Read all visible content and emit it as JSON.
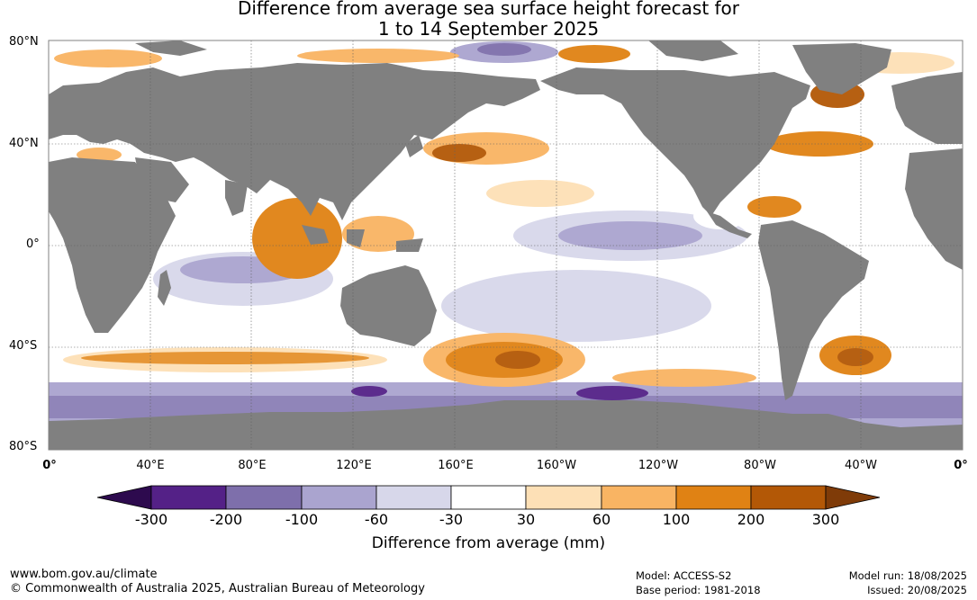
{
  "title": {
    "line1": "Difference from average sea surface height forecast for",
    "line2": "1 to 14 September 2025"
  },
  "map": {
    "lat_labels": [
      "80°N",
      "40°N",
      "0°",
      "40°S",
      "80°S"
    ],
    "lon_labels": [
      "0°",
      "40°E",
      "80°E",
      "120°E",
      "160°E",
      "160°W",
      "120°W",
      "80°W",
      "40°W",
      "0°"
    ],
    "land_color": "#808080",
    "ocean_base_color": "#ffffff"
  },
  "colorbar": {
    "title": "Difference from average (mm)",
    "tick_labels": [
      "-300",
      "-200",
      "-100",
      "-60",
      "-30",
      "30",
      "60",
      "100",
      "200",
      "300"
    ],
    "colors": [
      "#2d0a4e",
      "#542187",
      "#7e6fab",
      "#aaa4cf",
      "#d7d7ea",
      "#ffffff",
      "#fde0b6",
      "#f9b463",
      "#e08214",
      "#b35806",
      "#7f3b08"
    ]
  },
  "footer": {
    "url": "www.bom.gov.au/climate",
    "copyright": "© Commonwealth of Australia 2025, Australian Bureau of Meteorology",
    "model": "Model: ACCESS-S2",
    "base_period": "Base period: 1981-2018",
    "model_run": "Model run: 18/08/2025",
    "issued": "Issued: 20/08/2025"
  }
}
